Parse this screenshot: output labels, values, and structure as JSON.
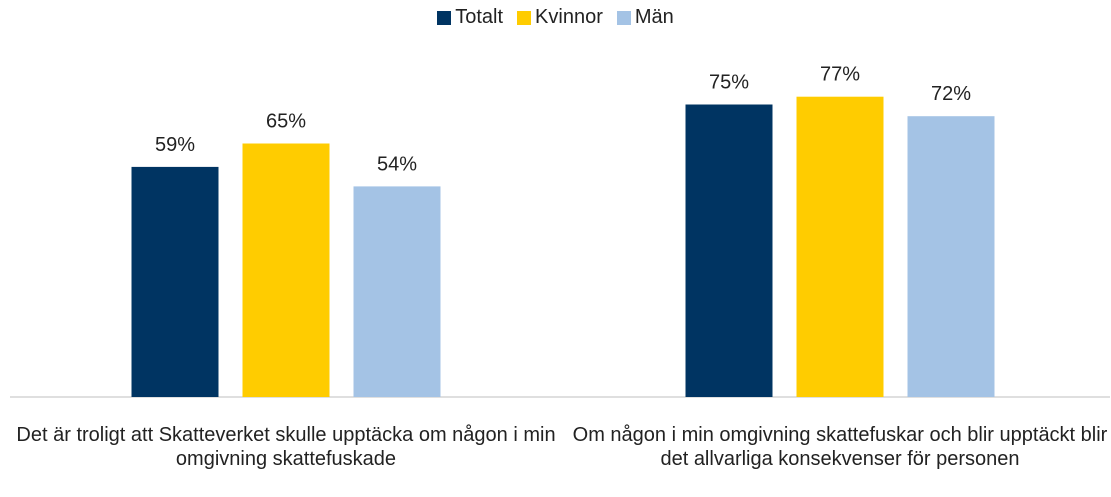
{
  "chart_data": {
    "type": "bar",
    "categories": [
      "Det är troligt att Skatteverket skulle upptäcka om någon i min omgivning skattefuskade",
      "Om någon i min omgivning skattefuskar och blir upptäckt blir det allvarliga konsekvenser för personen"
    ],
    "series": [
      {
        "name": "Totalt",
        "color": "#003462",
        "values": [
          59,
          75
        ],
        "value_labels": [
          "59%",
          "75%"
        ]
      },
      {
        "name": "Kvinnor",
        "color": "#ffcc00",
        "values": [
          65,
          77
        ],
        "value_labels": [
          "65%",
          "77%"
        ]
      },
      {
        "name": "Män",
        "color": "#a4c3e5",
        "values": [
          54,
          72
        ],
        "value_labels": [
          "54%",
          "72%"
        ]
      }
    ],
    "ylim": [
      0,
      100
    ],
    "legend": "top"
  }
}
